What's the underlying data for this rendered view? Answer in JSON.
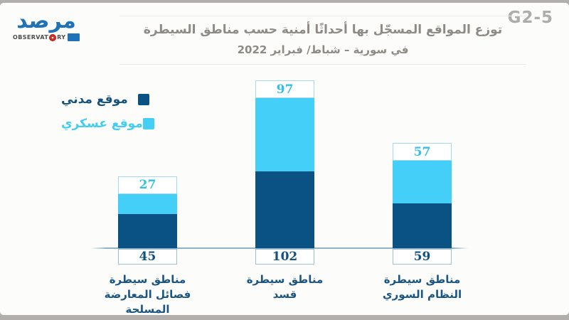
{
  "figure_code": "G2-5",
  "logo": {
    "arabic": "مرصد",
    "english_left": "OBSERVAT",
    "english_right": "RY",
    "english_full": "OBSERVATORY"
  },
  "header": {
    "title": "توزع المواقع المسجّل بها أحداثًا أمنية حسب مناطق السيطرة",
    "subtitle": "في سورية – شباط/ فبراير 2022"
  },
  "legend": [
    {
      "label": "موقع مدني",
      "color": "#0B5284",
      "text_color": "#15527E"
    },
    {
      "label": "موقع عسكري",
      "color": "#44CFF9",
      "text_color": "#41CDF2"
    }
  ],
  "chart_data": {
    "type": "bar",
    "stacked": true,
    "orientation": "vertical",
    "title": "توزع المواقع المسجّل بها أحداثًا أمنية حسب مناطق السيطرة",
    "subtitle": "في سورية – شباط/ فبراير 2022",
    "categories": [
      "مناطق سيطرة فصائل المعارضة المسلحة",
      "مناطق سيطرة قسد",
      "مناطق سيطرة النظام السوري"
    ],
    "category_lines": [
      [
        "مناطق سيطرة",
        "فصائل المعارضة",
        "المسلحة"
      ],
      [
        "مناطق سيطرة",
        "قسد"
      ],
      [
        "مناطق سيطرة",
        "النظام السوري"
      ]
    ],
    "series": [
      {
        "name": "موقع مدني",
        "color": "#0B5284",
        "values": [
          45,
          102,
          59
        ]
      },
      {
        "name": "موقع عسكري",
        "color": "#44CFF9",
        "values": [
          27,
          97,
          57
        ]
      }
    ],
    "value_label_style": {
      "civilian_value_position": "white box below baseline",
      "civilian_value_color": "#14517F",
      "military_value_position": "white box above bar top",
      "military_value_color": "#2FBFEA"
    },
    "legend_position": "upper-left",
    "gridlines": false,
    "baseline_color": "#8FB3CA"
  }
}
